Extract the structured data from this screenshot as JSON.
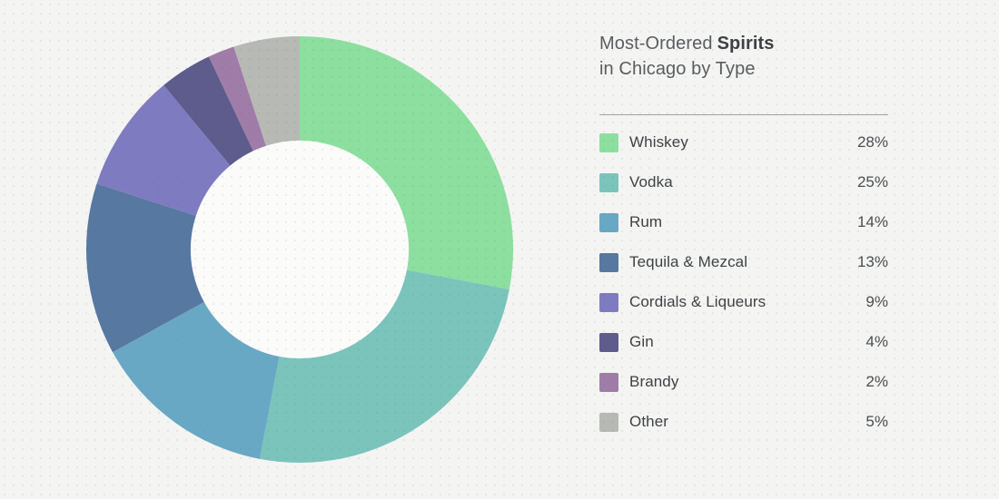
{
  "title": {
    "prefix": "Most-Ordered",
    "highlight": "Spirits",
    "line2": "in Chicago by Type"
  },
  "chart_data": {
    "type": "pie",
    "variant": "donut",
    "title": "Most-Ordered Spirits in Chicago by Type",
    "categories": [
      "Whiskey",
      "Vodka",
      "Rum",
      "Tequila & Mezcal",
      "Cordials & Liqueurs",
      "Gin",
      "Brandy",
      "Other"
    ],
    "values": [
      28,
      25,
      14,
      13,
      9,
      4,
      2,
      5
    ],
    "unit": "%",
    "colors": [
      "#8CDF9F",
      "#7AC4BC",
      "#69A8C5",
      "#5778A0",
      "#7F7BC1",
      "#5E5B8D",
      "#A07CA8",
      "#B7B9B5"
    ],
    "start_angle_deg": 0,
    "direction": "clockwise",
    "inner_radius_ratio": 0.511,
    "legend_position": "right",
    "data_labels": [
      "28%",
      "25%",
      "14%",
      "13%",
      "9%",
      "4%",
      "2%",
      "5%"
    ]
  },
  "style": {
    "page_background": "#F4F5F3",
    "hole_color": "#FBFBFA",
    "divider_color": "#9EA1A1",
    "label_color": "#3E4245",
    "value_color": "#4A4E51",
    "title_color": "#595D5F",
    "title_bold_color": "#3D4144"
  }
}
